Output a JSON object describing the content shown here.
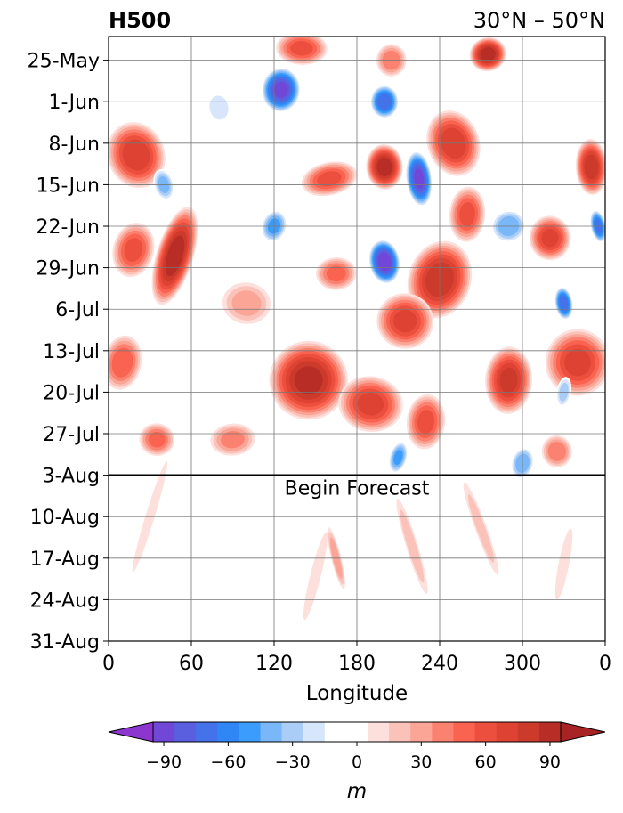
{
  "chart_data": {
    "type": "heatmap",
    "title": "H500",
    "subtitle": "30°N – 50°N",
    "xlabel": "Longitude",
    "ylabel": "",
    "x_ticks": [
      "0",
      "60",
      "120",
      "180",
      "240",
      "300",
      "0"
    ],
    "x_range": [
      0,
      360
    ],
    "y_ticks": [
      "25-May",
      "1-Jun",
      "8-Jun",
      "15-Jun",
      "22-Jun",
      "29-Jun",
      "6-Jul",
      "13-Jul",
      "20-Jul",
      "27-Jul",
      "3-Aug",
      "10-Aug",
      "17-Aug",
      "24-Aug",
      "31-Aug"
    ],
    "y_range": [
      "2023-05-21",
      "2023-08-31"
    ],
    "grid": true,
    "annotation": {
      "text": "Begin Forecast",
      "date": "3-Aug"
    },
    "colorbar": {
      "label": "m",
      "ticks": [
        "−90",
        "−60",
        "−30",
        "0",
        "30",
        "60",
        "90"
      ],
      "levels": [
        -105,
        -95,
        -85,
        -75,
        -65,
        -55,
        -45,
        -35,
        -25,
        -15,
        -5,
        5,
        15,
        25,
        35,
        45,
        55,
        65,
        75,
        85,
        95,
        105
      ],
      "colors": [
        "#8c35cf",
        "#7147d8",
        "#5a5fe0",
        "#4472ea",
        "#2f87f5",
        "#3b9cfb",
        "#79b7f8",
        "#a9cdf7",
        "#d7e6fb",
        "#ffffff",
        "#ffffff",
        "#fde0dc",
        "#fbc2b9",
        "#fba597",
        "#fb8271",
        "#f9634f",
        "#ec4f3d",
        "#de4232",
        "#cc3a2c",
        "#b82e27",
        "#a82424"
      ],
      "extend": "both"
    },
    "features": [
      {
        "lon": 20,
        "date": "2023-06-10",
        "value": 75,
        "rx": 22,
        "ry": 6
      },
      {
        "lon": 48,
        "date": "2023-06-27",
        "value": 95,
        "rx": 14,
        "ry": 9
      },
      {
        "lon": 18,
        "date": "2023-06-26",
        "value": 60,
        "rx": 16,
        "ry": 5
      },
      {
        "lon": 10,
        "date": "2023-07-15",
        "value": 55,
        "rx": 15,
        "ry": 5
      },
      {
        "lon": 35,
        "date": "2023-07-28",
        "value": 50,
        "rx": 14,
        "ry": 3
      },
      {
        "lon": 125,
        "date": "2023-05-30",
        "value": -90,
        "rx": 15,
        "ry": 4
      },
      {
        "lon": 140,
        "date": "2023-05-23",
        "value": 60,
        "rx": 20,
        "ry": 3
      },
      {
        "lon": 200,
        "date": "2023-06-01",
        "value": -75,
        "rx": 11,
        "ry": 3
      },
      {
        "lon": 200,
        "date": "2023-06-12",
        "value": 95,
        "rx": 14,
        "ry": 4
      },
      {
        "lon": 225,
        "date": "2023-06-14",
        "value": -90,
        "rx": 10,
        "ry": 5
      },
      {
        "lon": 200,
        "date": "2023-06-28",
        "value": -95,
        "rx": 12,
        "ry": 4
      },
      {
        "lon": 160,
        "date": "2023-06-14",
        "value": 60,
        "rx": 22,
        "ry": 3
      },
      {
        "lon": 275,
        "date": "2023-05-24",
        "value": 95,
        "rx": 14,
        "ry": 3
      },
      {
        "lon": 250,
        "date": "2023-06-08",
        "value": 75,
        "rx": 20,
        "ry": 6
      },
      {
        "lon": 240,
        "date": "2023-07-01",
        "value": 85,
        "rx": 24,
        "ry": 7
      },
      {
        "lon": 215,
        "date": "2023-07-08",
        "value": 70,
        "rx": 22,
        "ry": 5
      },
      {
        "lon": 145,
        "date": "2023-07-18",
        "value": 90,
        "rx": 30,
        "ry": 7
      },
      {
        "lon": 190,
        "date": "2023-07-22",
        "value": 70,
        "rx": 25,
        "ry": 5
      },
      {
        "lon": 230,
        "date": "2023-07-25",
        "value": 60,
        "rx": 15,
        "ry": 5
      },
      {
        "lon": 290,
        "date": "2023-07-18",
        "value": 80,
        "rx": 18,
        "ry": 6
      },
      {
        "lon": 340,
        "date": "2023-07-15",
        "value": 70,
        "rx": 25,
        "ry": 6
      },
      {
        "lon": 350,
        "date": "2023-06-12",
        "value": 85,
        "rx": 12,
        "ry": 5
      },
      {
        "lon": 320,
        "date": "2023-06-24",
        "value": 70,
        "rx": 16,
        "ry": 4
      },
      {
        "lon": 330,
        "date": "2023-07-05",
        "value": -75,
        "rx": 7,
        "ry": 3
      },
      {
        "lon": 355,
        "date": "2023-06-22",
        "value": -70,
        "rx": 6,
        "ry": 3
      },
      {
        "lon": 40,
        "date": "2023-06-15",
        "value": -40,
        "rx": 8,
        "ry": 3
      },
      {
        "lon": 290,
        "date": "2023-06-22",
        "value": -45,
        "rx": 14,
        "ry": 3
      },
      {
        "lon": 120,
        "date": "2023-06-22",
        "value": -50,
        "rx": 10,
        "ry": 3
      },
      {
        "lon": 210,
        "date": "2023-07-31",
        "value": -50,
        "rx": 7,
        "ry": 3
      },
      {
        "lon": 300,
        "date": "2023-08-01",
        "value": -45,
        "rx": 9,
        "ry": 3
      },
      {
        "lon": 330,
        "date": "2023-07-20",
        "value": -30,
        "rx": 6,
        "ry": 3
      },
      {
        "lon": 100,
        "date": "2023-07-05",
        "value": 30,
        "rx": 20,
        "ry": 4
      },
      {
        "lon": 260,
        "date": "2023-06-20",
        "value": 60,
        "rx": 14,
        "ry": 5
      },
      {
        "lon": 205,
        "date": "2023-05-25",
        "value": 45,
        "rx": 12,
        "ry": 3
      },
      {
        "lon": 165,
        "date": "2023-06-30",
        "value": 50,
        "rx": 16,
        "ry": 3
      },
      {
        "lon": 90,
        "date": "2023-07-28",
        "value": 40,
        "rx": 18,
        "ry": 3
      },
      {
        "lon": 325,
        "date": "2023-07-30",
        "value": 45,
        "rx": 12,
        "ry": 3
      },
      {
        "lon": 80,
        "date": "2023-06-02",
        "value": -25,
        "rx": 10,
        "ry": 3
      },
      {
        "lon": 165,
        "date": "2023-08-17",
        "value": 35,
        "rx": 4,
        "ry": 6
      },
      {
        "lon": 220,
        "date": "2023-08-15",
        "value": 22,
        "rx": 5,
        "ry": 10
      },
      {
        "lon": 270,
        "date": "2023-08-12",
        "value": 20,
        "rx": 5,
        "ry": 10
      },
      {
        "lon": 30,
        "date": "2023-08-10",
        "value": 18,
        "rx": 4,
        "ry": 12
      },
      {
        "lon": 150,
        "date": "2023-08-20",
        "value": 12,
        "rx": 5,
        "ry": 10
      },
      {
        "lon": 330,
        "date": "2023-08-18",
        "value": 12,
        "rx": 5,
        "ry": 8
      }
    ]
  }
}
